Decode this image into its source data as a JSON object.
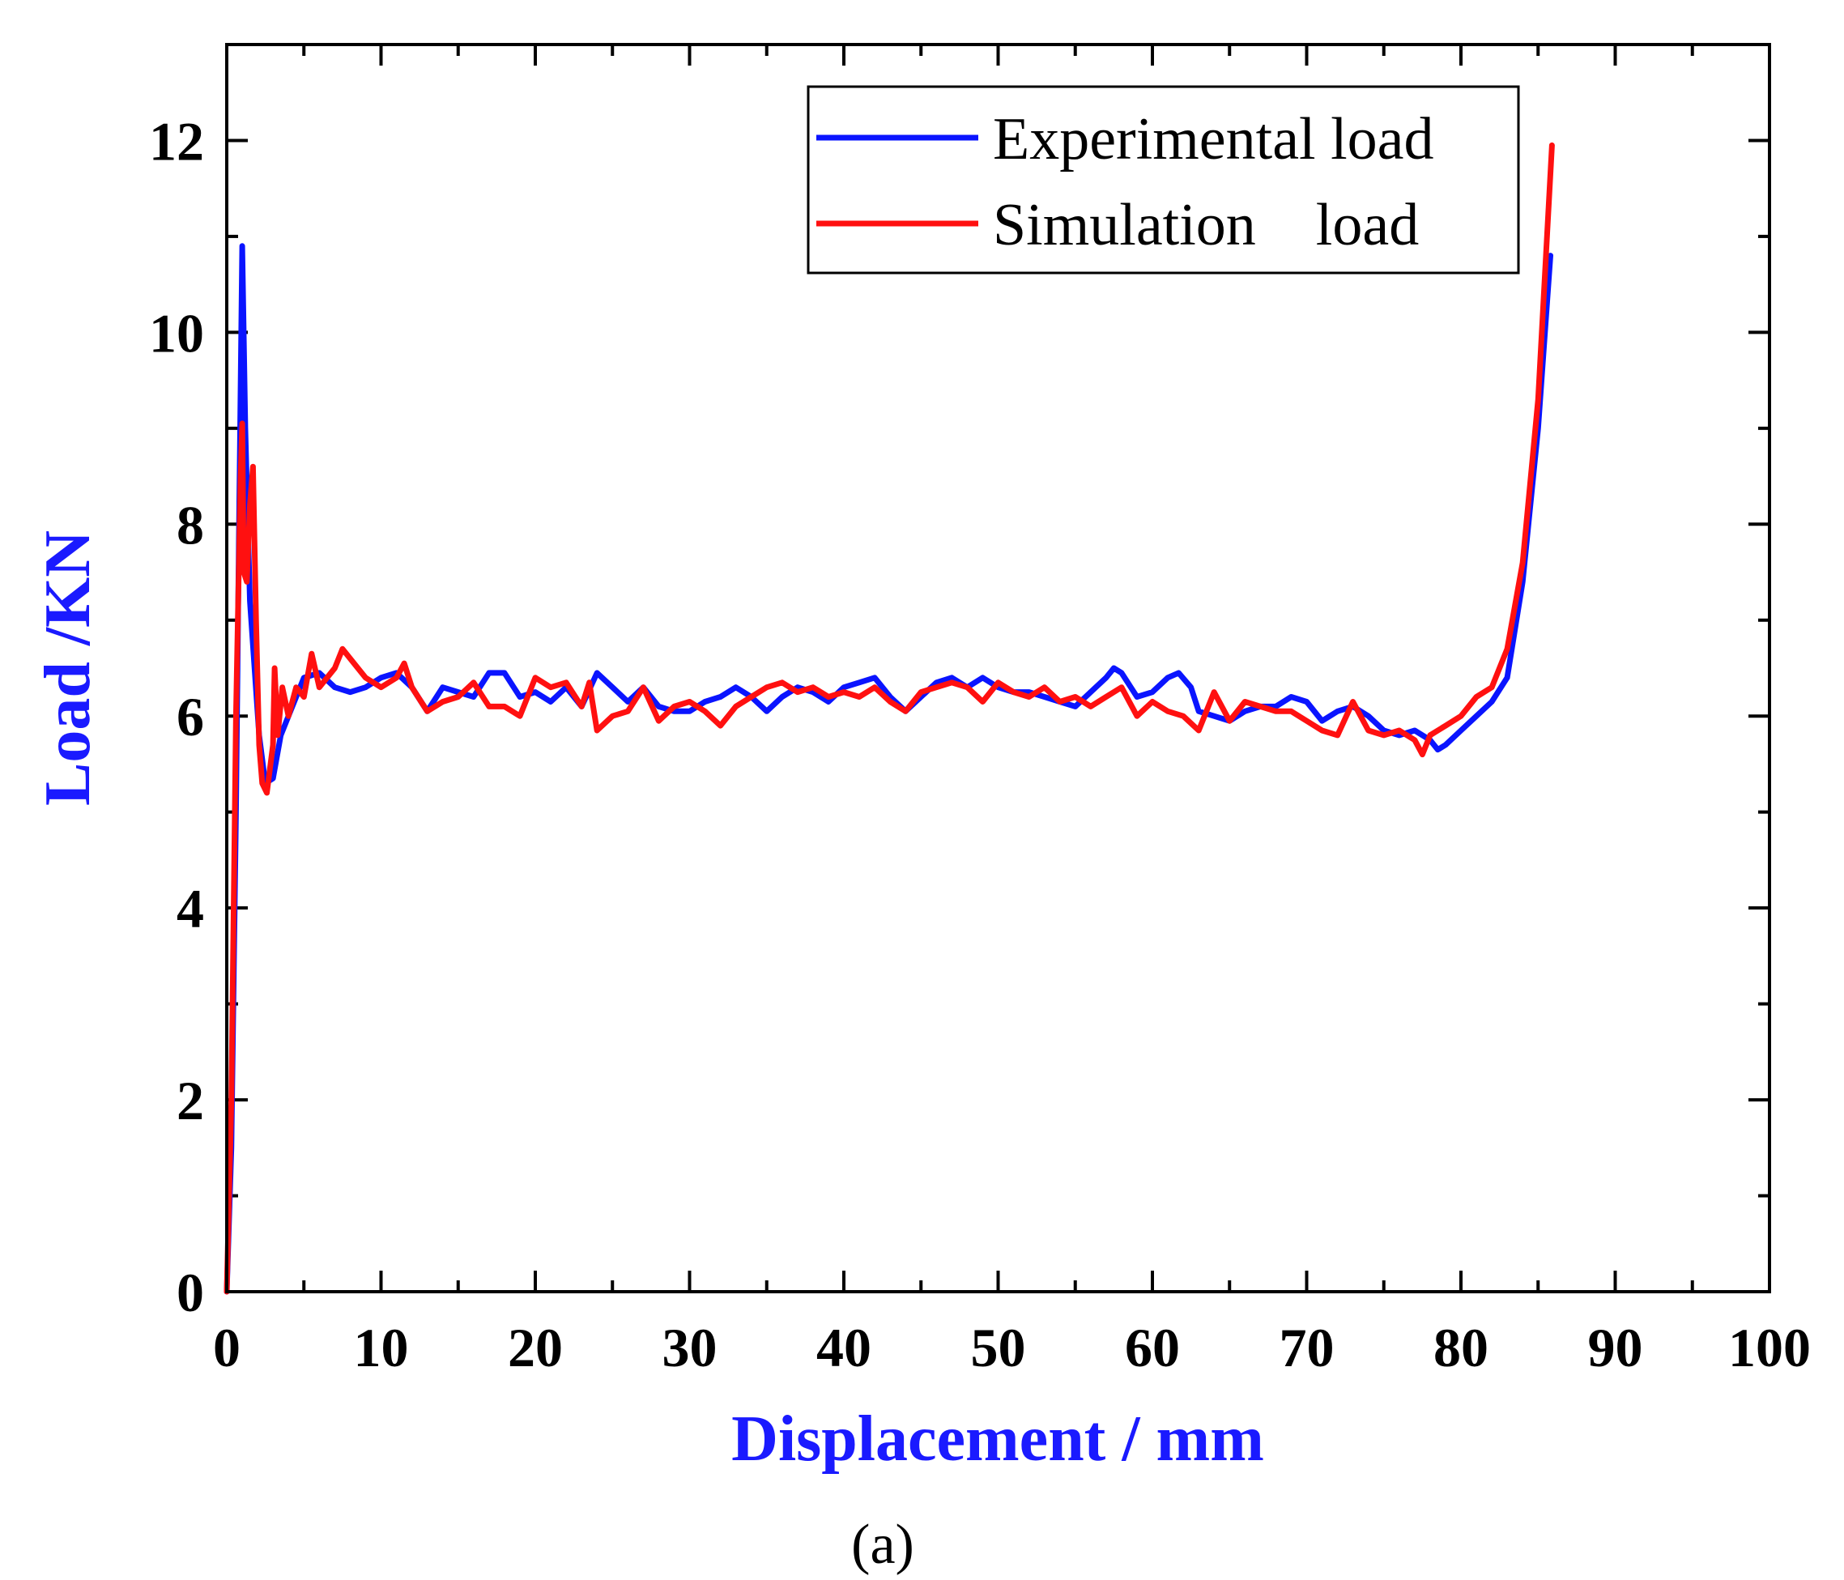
{
  "chart_data": {
    "type": "line",
    "title": "",
    "caption": "(a)",
    "xlabel": "Displacement / mm",
    "ylabel": "Load /KN",
    "xlim": [
      0,
      100
    ],
    "ylim": [
      0,
      13
    ],
    "xticks": [
      0,
      10,
      20,
      30,
      40,
      50,
      60,
      70,
      80,
      90,
      100
    ],
    "yticks": [
      0,
      2,
      4,
      6,
      8,
      10,
      12
    ],
    "xtick_labels": [
      "0",
      "10",
      "20",
      "30",
      "40",
      "50",
      "60",
      "70",
      "80",
      "90",
      "100"
    ],
    "ytick_labels": [
      "0",
      "2",
      "4",
      "6",
      "8",
      "10",
      "12"
    ],
    "grid": false,
    "legend_position": "top-right",
    "colors": {
      "axis_title": "#1a1aff",
      "axis": "#000000"
    },
    "series": [
      {
        "name": "Experimental load",
        "color": "#0a14ff",
        "x": [
          0,
          0.3,
          0.6,
          0.8,
          1.0,
          1.2,
          1.5,
          1.8,
          2.1,
          2.5,
          3.0,
          3.5,
          4.0,
          5.0,
          6.0,
          7.0,
          8.0,
          9.0,
          10.0,
          11.0,
          12.0,
          13.0,
          14.0,
          15.0,
          16.0,
          17.0,
          18.0,
          19.0,
          20.0,
          21.0,
          22.0,
          23.0,
          24.0,
          25.0,
          26.0,
          27.0,
          28.0,
          29.0,
          30.0,
          31.0,
          32.0,
          33.0,
          34.0,
          35.0,
          36.0,
          37.0,
          38.0,
          39.0,
          40.0,
          41.0,
          42.0,
          43.0,
          44.0,
          45.0,
          46.0,
          47.0,
          48.0,
          49.0,
          50.0,
          51.0,
          52.0,
          53.0,
          54.0,
          55.0,
          56.0,
          57.0,
          57.5,
          58.0,
          59.0,
          60.0,
          61.0,
          61.7,
          62.5,
          63.0,
          64.0,
          65.0,
          66.0,
          67.0,
          68.0,
          69.0,
          70.0,
          71.0,
          72.0,
          73.0,
          74.0,
          75.0,
          76.0,
          77.0,
          77.5,
          78.0,
          78.5,
          79.0,
          80.0,
          81.0,
          82.0,
          83.0,
          84.0,
          85.0,
          85.8
        ],
        "values": [
          0,
          1.5,
          5.0,
          8.0,
          10.9,
          9.0,
          7.2,
          6.5,
          5.8,
          5.3,
          5.35,
          5.8,
          6.0,
          6.4,
          6.45,
          6.3,
          6.25,
          6.3,
          6.4,
          6.45,
          6.3,
          6.05,
          6.3,
          6.25,
          6.2,
          6.45,
          6.45,
          6.2,
          6.25,
          6.15,
          6.3,
          6.1,
          6.45,
          6.3,
          6.15,
          6.3,
          6.1,
          6.05,
          6.05,
          6.15,
          6.2,
          6.3,
          6.2,
          6.05,
          6.2,
          6.3,
          6.25,
          6.15,
          6.3,
          6.35,
          6.4,
          6.2,
          6.05,
          6.2,
          6.35,
          6.4,
          6.3,
          6.4,
          6.3,
          6.25,
          6.25,
          6.2,
          6.15,
          6.1,
          6.25,
          6.4,
          6.5,
          6.45,
          6.2,
          6.25,
          6.4,
          6.45,
          6.3,
          6.05,
          6.0,
          5.95,
          6.05,
          6.1,
          6.1,
          6.2,
          6.15,
          5.95,
          6.05,
          6.1,
          6.0,
          5.85,
          5.8,
          5.85,
          5.8,
          5.75,
          5.65,
          5.7,
          5.85,
          6.0,
          6.15,
          6.4,
          7.4,
          9.0,
          10.8
        ]
      },
      {
        "name": "Simulation    load",
        "color": "#ff1010",
        "x": [
          0,
          0.3,
          0.6,
          0.9,
          1.0,
          1.1,
          1.3,
          1.5,
          1.7,
          1.9,
          2.1,
          2.3,
          2.6,
          3.0,
          3.1,
          3.3,
          3.6,
          4.0,
          4.5,
          5.0,
          5.5,
          6.0,
          7.0,
          7.5,
          8.0,
          9.0,
          10.0,
          11.0,
          11.5,
          12.0,
          13.0,
          14.0,
          15.0,
          16.0,
          17.0,
          18.0,
          19.0,
          20.0,
          21.0,
          22.0,
          23.0,
          23.5,
          24.0,
          25.0,
          26.0,
          27.0,
          28.0,
          29.0,
          30.0,
          31.0,
          32.0,
          33.0,
          34.0,
          35.0,
          36.0,
          37.0,
          38.0,
          39.0,
          40.0,
          41.0,
          42.0,
          43.0,
          44.0,
          45.0,
          46.0,
          47.0,
          48.0,
          49.0,
          50.0,
          51.0,
          52.0,
          53.0,
          54.0,
          55.0,
          56.0,
          57.0,
          58.0,
          59.0,
          60.0,
          61.0,
          62.0,
          63.0,
          64.0,
          65.0,
          66.0,
          67.0,
          68.0,
          69.0,
          70.0,
          71.0,
          72.0,
          73.0,
          74.0,
          75.0,
          76.0,
          77.0,
          77.5,
          78.0,
          79.0,
          80.0,
          81.0,
          82.0,
          83.0,
          84.0,
          85.0,
          85.9
        ],
        "values": [
          0,
          2.0,
          6.0,
          8.5,
          9.05,
          7.5,
          7.4,
          8.2,
          8.6,
          7.0,
          5.7,
          5.3,
          5.2,
          5.7,
          6.5,
          5.8,
          6.3,
          6.0,
          6.3,
          6.2,
          6.65,
          6.3,
          6.5,
          6.7,
          6.6,
          6.4,
          6.3,
          6.4,
          6.55,
          6.3,
          6.05,
          6.15,
          6.2,
          6.35,
          6.1,
          6.1,
          6.0,
          6.4,
          6.3,
          6.35,
          6.1,
          6.35,
          5.85,
          6.0,
          6.05,
          6.3,
          5.95,
          6.1,
          6.15,
          6.05,
          5.9,
          6.1,
          6.2,
          6.3,
          6.35,
          6.25,
          6.3,
          6.2,
          6.25,
          6.2,
          6.3,
          6.15,
          6.05,
          6.25,
          6.3,
          6.35,
          6.3,
          6.15,
          6.35,
          6.25,
          6.2,
          6.3,
          6.15,
          6.2,
          6.1,
          6.2,
          6.3,
          6.0,
          6.15,
          6.05,
          6.0,
          5.85,
          6.25,
          5.95,
          6.15,
          6.1,
          6.05,
          6.05,
          5.95,
          5.85,
          5.8,
          6.15,
          5.85,
          5.8,
          5.85,
          5.75,
          5.6,
          5.8,
          5.9,
          6.0,
          6.2,
          6.3,
          6.7,
          7.6,
          9.3,
          11.95
        ]
      }
    ]
  }
}
